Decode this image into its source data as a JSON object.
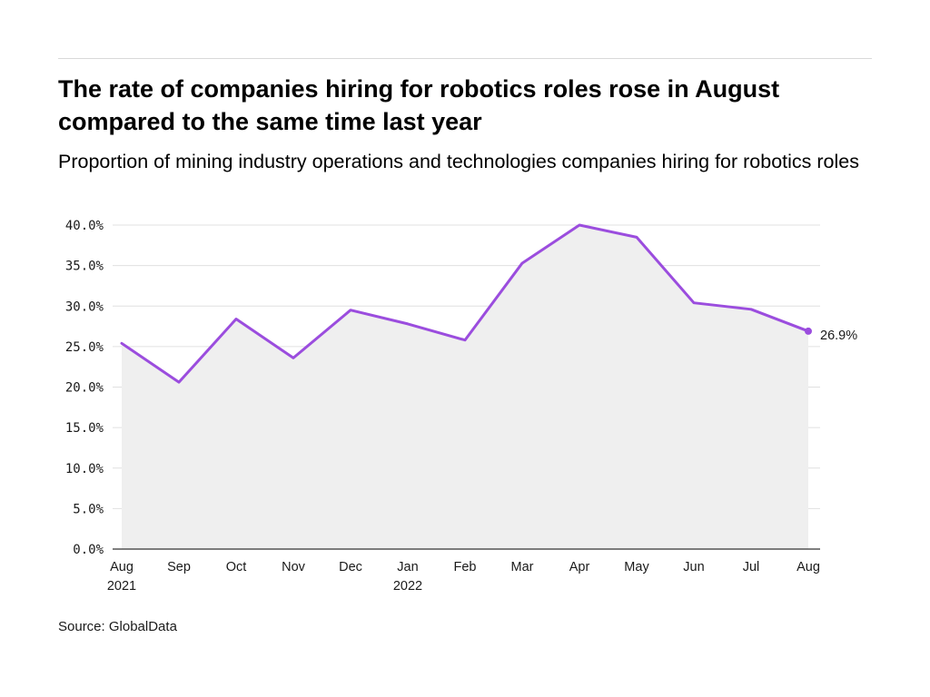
{
  "header": {
    "title": "The rate of companies hiring for robotics roles rose in August compared to the same time last year",
    "subtitle": "Proportion of mining industry operations and technologies companies hiring for robotics roles"
  },
  "footer": {
    "source": "Source: GlobalData"
  },
  "colors": {
    "line": "#9b4dde",
    "area": "#efefef",
    "grid": "#e0e0e0",
    "axis": "#333333"
  },
  "chart_data": {
    "type": "area",
    "title": "The rate of companies hiring for robotics roles rose in August compared to the same time last year",
    "subtitle": "Proportion of mining industry operations and technologies companies hiring for robotics roles",
    "xlabel": "",
    "ylabel": "",
    "categories": [
      "Aug",
      "Sep",
      "Oct",
      "Nov",
      "Dec",
      "Jan",
      "Feb",
      "Mar",
      "Apr",
      "May",
      "Jun",
      "Jul",
      "Aug"
    ],
    "category_sublabels": [
      "2021",
      "",
      "",
      "",
      "",
      "2022",
      "",
      "",
      "",
      "",
      "",
      "",
      ""
    ],
    "series": [
      {
        "values": [
          25.4,
          20.6,
          28.4,
          23.6,
          29.5,
          27.8,
          25.8,
          35.3,
          40.0,
          38.5,
          30.4,
          29.6,
          26.9
        ]
      }
    ],
    "ylim": [
      0,
      40
    ],
    "yticks": [
      0,
      5,
      10,
      15,
      20,
      25,
      30,
      35,
      40
    ],
    "ytick_labels": [
      "0.0%",
      "5.0%",
      "10.0%",
      "15.0%",
      "20.0%",
      "25.0%",
      "30.0%",
      "35.0%",
      "40.0%"
    ],
    "end_label": "26.9%",
    "grid": true
  }
}
